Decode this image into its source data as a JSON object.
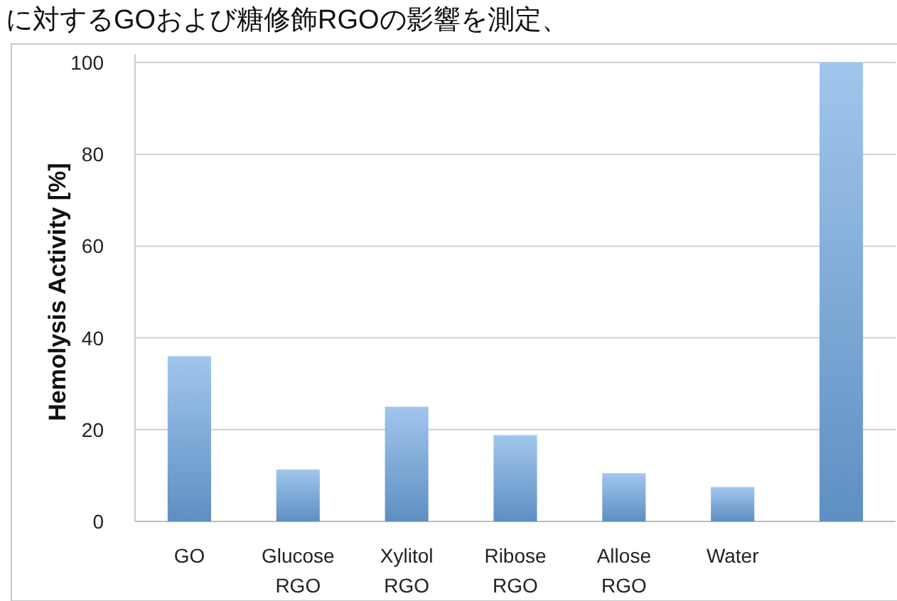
{
  "chart_data": {
    "type": "bar",
    "annotations": [
      "に対するGOおよび糖修飾RGOの影響を測定、"
    ],
    "ylabel": "Hemolysis Activity [%]",
    "categories": [
      "GO",
      "Glucose\nRGO",
      "Xylitol\nRGO",
      "Ribose\nRGO",
      "Allose\nRGO",
      "Water",
      null
    ],
    "values": [
      36,
      11.3,
      25,
      18.8,
      10.5,
      7.5,
      100
    ],
    "color": "#6ea8e4",
    "ylim": [
      0,
      100
    ],
    "yticks": [
      0,
      20,
      40,
      60,
      80,
      100
    ],
    "grid": "y"
  }
}
